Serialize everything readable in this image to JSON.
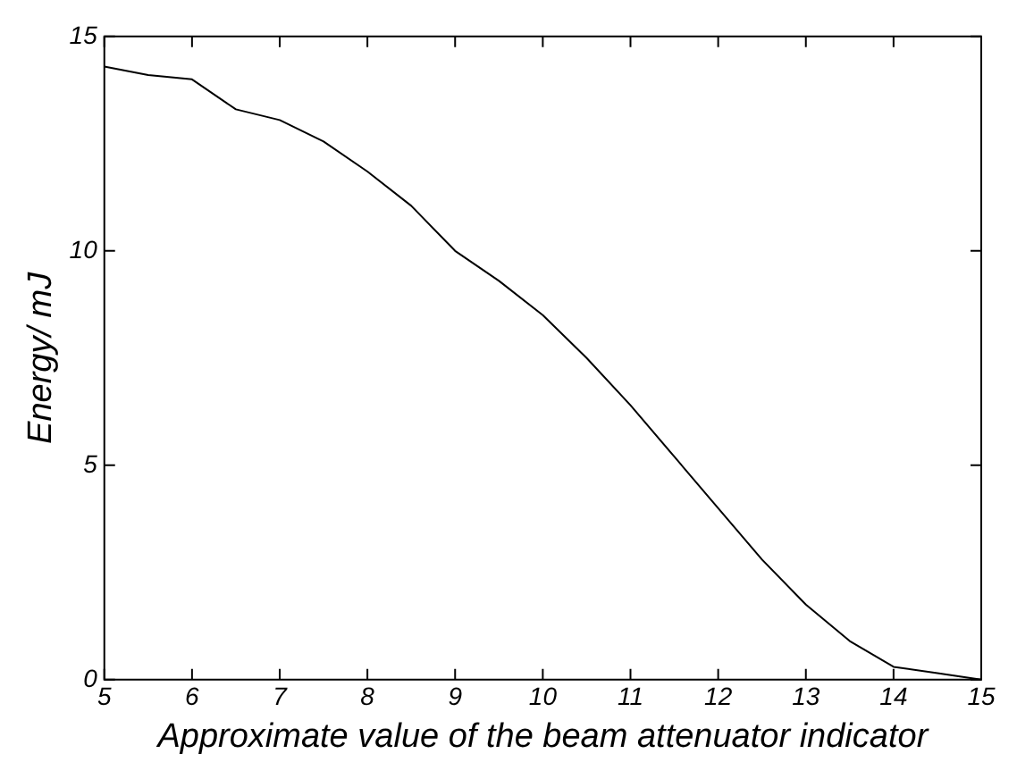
{
  "chart_data": {
    "type": "line",
    "xlabel": "Approximate value of the beam attenuator indicator",
    "ylabel": "Energy/ mJ",
    "x": [
      5,
      5.5,
      6,
      6.5,
      7,
      7.5,
      8,
      8.5,
      9,
      9.5,
      10,
      10.5,
      11,
      11.5,
      12,
      12.5,
      13,
      13.5,
      14,
      14.5,
      15
    ],
    "series": [
      {
        "color": "#000000",
        "values": [
          14.3,
          14.1,
          14.0,
          13.3,
          13.05,
          12.55,
          11.85,
          11.05,
          10.0,
          9.3,
          8.5,
          7.5,
          6.4,
          5.2,
          4.0,
          2.8,
          1.75,
          0.9,
          0.3,
          0.15,
          0
        ]
      }
    ],
    "xlim": [
      5,
      15
    ],
    "xticks": [
      5,
      6,
      7,
      8,
      9,
      10,
      11,
      12,
      13,
      14,
      15
    ],
    "ylim": [
      0,
      15
    ],
    "yticks": [
      0,
      5,
      10,
      15
    ],
    "grid": false,
    "legend": false,
    "marker": "none",
    "line_style": "solid"
  }
}
